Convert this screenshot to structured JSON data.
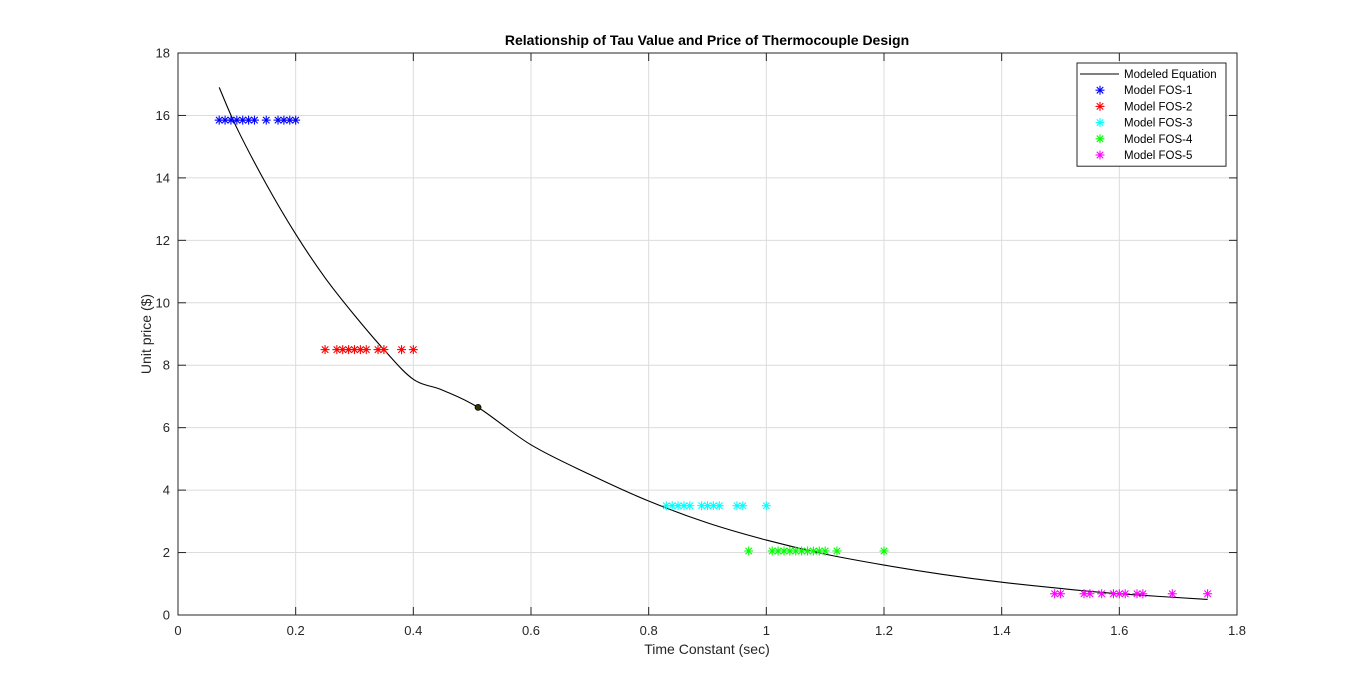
{
  "chart_data": {
    "type": "scatter",
    "title": "Relationship of Tau Value and Price of Thermocouple Design",
    "xlabel": "Time Constant (sec)",
    "ylabel": "Unit price ($)",
    "xlim": [
      0,
      1.8
    ],
    "ylim": [
      0,
      18
    ],
    "xticks": [
      0,
      0.2,
      0.4,
      0.6,
      0.8,
      1,
      1.2,
      1.4,
      1.6,
      1.8
    ],
    "xtick_labels": [
      "0",
      "0.2",
      "0.4",
      "0.6",
      "0.8",
      "1",
      "1.2",
      "1.4",
      "1.6",
      "1.8"
    ],
    "yticks": [
      0,
      2,
      4,
      6,
      8,
      10,
      12,
      14,
      16,
      18
    ],
    "ytick_labels": [
      "0",
      "2",
      "4",
      "6",
      "8",
      "10",
      "12",
      "14",
      "16",
      "18"
    ],
    "grid": true,
    "legend_position": "top-right",
    "curve": {
      "name": "Modeled Equation",
      "color": "#000000",
      "x": [
        0.07,
        0.1,
        0.15,
        0.2,
        0.25,
        0.3,
        0.35,
        0.4,
        0.45,
        0.51,
        0.6,
        0.7,
        0.8,
        0.9,
        1.0,
        1.1,
        1.2,
        1.3,
        1.4,
        1.5,
        1.6,
        1.75
      ],
      "y": [
        16.9,
        15.6,
        13.8,
        12.2,
        10.8,
        9.6,
        8.5,
        7.55,
        7.2,
        6.65,
        5.45,
        4.5,
        3.65,
        2.95,
        2.4,
        1.95,
        1.6,
        1.3,
        1.05,
        0.85,
        0.68,
        0.5
      ]
    },
    "highlight_point": {
      "x": 0.51,
      "y": 6.65,
      "color": "#000000"
    },
    "series": [
      {
        "name": "Model FOS-1",
        "color": "#0000ff",
        "x": [
          0.07,
          0.08,
          0.09,
          0.1,
          0.11,
          0.12,
          0.13,
          0.15,
          0.17,
          0.18,
          0.19,
          0.2
        ],
        "y": [
          15.85,
          15.85,
          15.85,
          15.85,
          15.85,
          15.85,
          15.85,
          15.85,
          15.85,
          15.85,
          15.85,
          15.85
        ]
      },
      {
        "name": "Model FOS-2",
        "color": "#ff0000",
        "x": [
          0.25,
          0.27,
          0.28,
          0.29,
          0.3,
          0.31,
          0.32,
          0.34,
          0.35,
          0.38,
          0.4
        ],
        "y": [
          8.5,
          8.5,
          8.5,
          8.5,
          8.5,
          8.5,
          8.5,
          8.5,
          8.5,
          8.5,
          8.5
        ]
      },
      {
        "name": "Model FOS-3",
        "color": "#00ffff",
        "x": [
          0.83,
          0.84,
          0.85,
          0.86,
          0.87,
          0.89,
          0.9,
          0.91,
          0.92,
          0.95,
          0.96,
          1.0
        ],
        "y": [
          3.5,
          3.5,
          3.5,
          3.5,
          3.5,
          3.5,
          3.5,
          3.5,
          3.5,
          3.5,
          3.5,
          3.5
        ]
      },
      {
        "name": "Model FOS-4",
        "color": "#00ff00",
        "x": [
          0.97,
          1.01,
          1.02,
          1.03,
          1.04,
          1.05,
          1.06,
          1.07,
          1.08,
          1.09,
          1.1,
          1.12,
          1.2
        ],
        "y": [
          2.05,
          2.05,
          2.05,
          2.05,
          2.05,
          2.05,
          2.05,
          2.05,
          2.05,
          2.05,
          2.05,
          2.05,
          2.05
        ]
      },
      {
        "name": "Model FOS-5",
        "color": "#ff00ff",
        "x": [
          1.49,
          1.5,
          1.54,
          1.55,
          1.57,
          1.59,
          1.6,
          1.61,
          1.63,
          1.64,
          1.69,
          1.75
        ],
        "y": [
          0.68,
          0.68,
          0.68,
          0.68,
          0.68,
          0.68,
          0.68,
          0.68,
          0.68,
          0.68,
          0.68,
          0.68
        ]
      }
    ]
  }
}
